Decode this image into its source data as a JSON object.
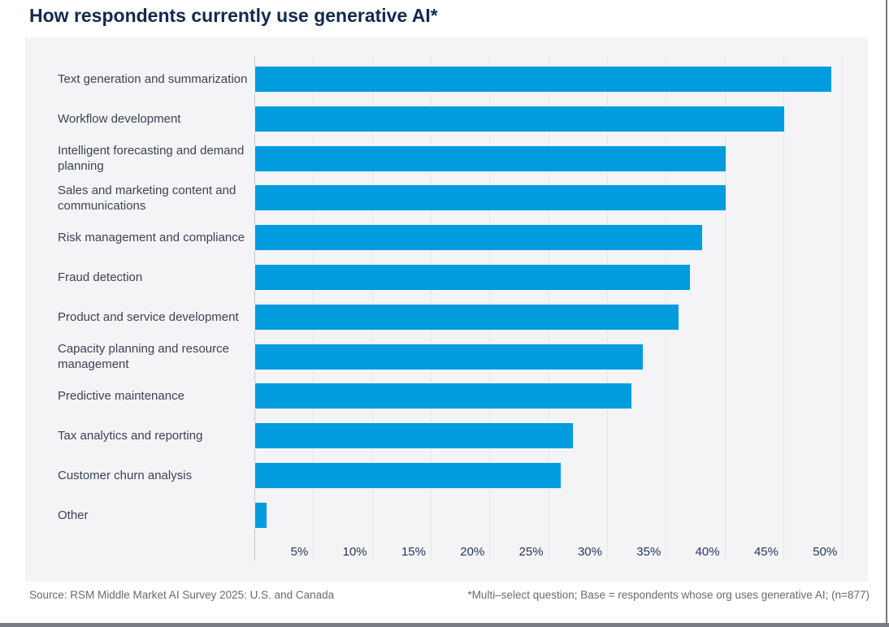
{
  "title": "How respondents currently use generative AI*",
  "footer": {
    "source": "Source: RSM Middle Market AI Survey 2025: U.S. and Canada",
    "note": "*Multi–select question; Base = respondents whose org uses generative AI; (n=877)"
  },
  "colors": {
    "bar": "#009CDE",
    "title_text": "#13294F",
    "label_text": "#3B4354",
    "tick_text": "#25365A",
    "panel_bg": "#F4F4F6",
    "gridline": "#E7E7E9",
    "axis_line": "#C9C9CC",
    "footer_text": "#6A6A6C",
    "frame": "#797C82"
  },
  "chart_data": {
    "type": "bar",
    "orientation": "horizontal",
    "title": "How respondents currently use generative AI*",
    "categories": [
      "Text generation and summarization",
      "Workflow development",
      "Intelligent forecasting and demand planning",
      "Sales and marketing content and communications",
      "Risk management and compliance",
      "Fraud detection",
      "Product and service development",
      "Capacity planning and resource management",
      "Predictive maintenance",
      "Tax analytics and reporting",
      "Customer churn analysis",
      "Other"
    ],
    "values": [
      49,
      45,
      40,
      40,
      38,
      37,
      36,
      33,
      32,
      27,
      26,
      1
    ],
    "unit": "%",
    "xlim": [
      0,
      50
    ],
    "xticks": [
      5,
      10,
      15,
      20,
      25,
      30,
      35,
      40,
      45,
      50
    ],
    "xtick_labels": [
      "5%",
      "10%",
      "15%",
      "20%",
      "25%",
      "30%",
      "35%",
      "40%",
      "45%",
      "50%"
    ],
    "grid": true,
    "legend": false
  }
}
